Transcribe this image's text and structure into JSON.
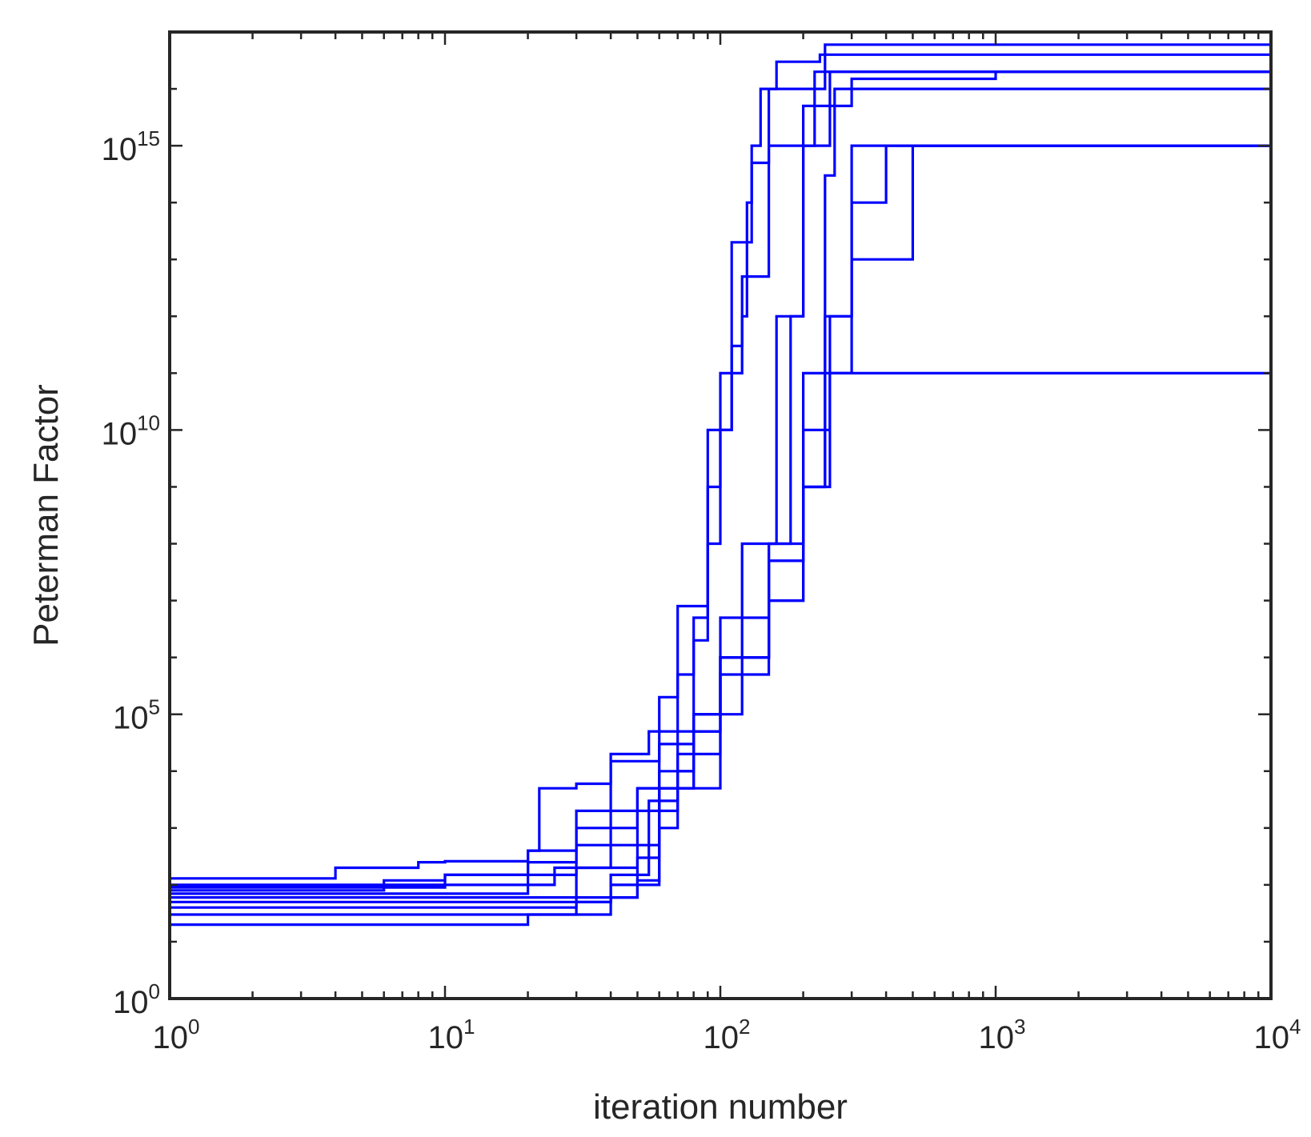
{
  "chart_data": {
    "type": "line",
    "title": "",
    "xlabel": "iteration number",
    "ylabel": "Peterman Factor",
    "xscale": "log",
    "yscale": "log",
    "xlim": [
      1,
      10000
    ],
    "ylim": [
      1,
      1e+17
    ],
    "x_ticks": [
      {
        "value": 1,
        "base": "10",
        "exp": "0"
      },
      {
        "value": 10,
        "base": "10",
        "exp": "1"
      },
      {
        "value": 100,
        "base": "10",
        "exp": "2"
      },
      {
        "value": 1000,
        "base": "10",
        "exp": "3"
      },
      {
        "value": 10000,
        "base": "10",
        "exp": "4"
      }
    ],
    "y_ticks": [
      {
        "value": 1,
        "base": "10",
        "exp": "0"
      },
      {
        "value": 100000,
        "base": "10",
        "exp": "5"
      },
      {
        "value": 10000000000,
        "base": "10",
        "exp": "10"
      },
      {
        "value": 1000000000000000.0,
        "base": "10",
        "exp": "15"
      }
    ],
    "grid": false,
    "box": true,
    "line_color": "#0000ff",
    "series": [
      {
        "x": [
          1,
          3,
          4,
          8,
          10,
          20,
          22,
          30,
          40,
          55,
          70,
          80,
          90,
          100,
          110,
          120,
          125,
          130,
          140,
          160,
          230,
          10000
        ],
        "y": [
          130,
          130,
          200,
          250,
          260,
          400,
          5000,
          6000,
          20000,
          50000,
          500000,
          5000000.0,
          100000000.0,
          10000000000.0,
          300000000000.0,
          1000000000000.0,
          100000000000000.0,
          1000000000000000.0,
          1e+16,
          3e+16,
          4e+16,
          4e+16
        ]
      },
      {
        "x": [
          1,
          5,
          10,
          20,
          30,
          40,
          60,
          80,
          90,
          100,
          120,
          150,
          200,
          300,
          1000,
          10000
        ],
        "y": [
          100,
          100,
          150,
          400,
          2000,
          15000,
          30000,
          2000000.0,
          1000000000.0,
          100000000000.0,
          5000000000000.0,
          1000000000000000.0,
          5000000000000000.0,
          1.5e+16,
          2e+16,
          3e+16
        ]
      },
      {
        "x": [
          1,
          8,
          10,
          25,
          40,
          60,
          70,
          90,
          110,
          130,
          150,
          240,
          10000
        ],
        "y": [
          90,
          90,
          100,
          200,
          2000,
          200000,
          8000000.0,
          10000000000.0,
          20000000000000.0,
          500000000000000.0,
          1e+16,
          6e+16,
          6e+16
        ]
      },
      {
        "x": [
          1,
          3,
          6,
          10,
          20,
          30,
          50,
          80,
          100,
          150,
          180,
          200,
          250,
          10000
        ],
        "y": [
          80,
          80,
          120,
          150,
          250,
          1000,
          5000,
          100000,
          5000000.0,
          100000000.0,
          1000000000000.0,
          1000000000000000.0,
          2e+16,
          4e+16
        ]
      },
      {
        "x": [
          1,
          10,
          20,
          30,
          60,
          80,
          100,
          120,
          160,
          200,
          220,
          10000
        ],
        "y": [
          70,
          70,
          150,
          500,
          10000,
          100000,
          1000000.0,
          100000000.0,
          1000000000000.0,
          1000000000000000.0,
          2e+16,
          3.5e+16
        ]
      },
      {
        "x": [
          1,
          10,
          30,
          50,
          70,
          100,
          150,
          200,
          240,
          260,
          10000
        ],
        "y": [
          60,
          60,
          200,
          5000,
          50000,
          1000000.0,
          50000000.0,
          100000000000.0,
          300000000000000.0,
          1e+16,
          3e+16
        ]
      },
      {
        "x": [
          1,
          10,
          40,
          60,
          80,
          100,
          150,
          200,
          240,
          300,
          10000
        ],
        "y": [
          50,
          50,
          100,
          5000,
          100000,
          1000000.0,
          50000000.0,
          1000000000.0,
          1000000000000.0,
          1000000000000000.0,
          2e+16
        ]
      },
      {
        "x": [
          1,
          10,
          30,
          50,
          60,
          70,
          100,
          150,
          200,
          240,
          10000
        ],
        "y": [
          40,
          40,
          60,
          120,
          2000,
          20000,
          500000,
          10000000.0,
          1000000000.0,
          100000000000.0,
          3e+16
        ]
      },
      {
        "x": [
          1,
          10,
          30,
          40,
          55,
          70,
          80,
          100,
          150,
          200,
          250,
          300,
          400,
          10000
        ],
        "y": [
          30,
          30,
          50,
          150,
          3000,
          10000,
          50000,
          1000000.0,
          100000000.0,
          10000000000.0,
          1000000000000.0,
          100000000000000.0,
          1000000000000000.0,
          3e+16
        ]
      },
      {
        "x": [
          1,
          10,
          20,
          40,
          50,
          60,
          70,
          100,
          120,
          150,
          200,
          250,
          300,
          500,
          10000
        ],
        "y": [
          20,
          20,
          30,
          60,
          300,
          1000,
          5000,
          100000,
          1000000.0,
          10000000.0,
          1000000000.0,
          100000000000.0,
          10000000000000.0,
          1000000000000000.0,
          2.5e+16
        ]
      }
    ]
  }
}
